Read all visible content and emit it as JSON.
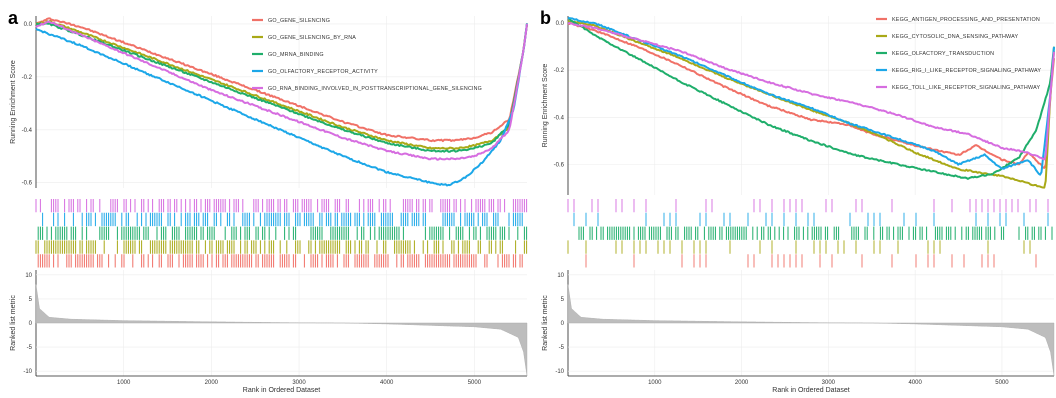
{
  "chart_data": [
    {
      "type": "line",
      "panel_label": "a",
      "x_range": [
        0,
        5600
      ],
      "x_ticks": [
        {
          "value": 1000,
          "label": "1000"
        },
        {
          "value": 2000,
          "label": "2000"
        },
        {
          "value": 3000,
          "label": "3000"
        },
        {
          "value": 4000,
          "label": "4000"
        },
        {
          "value": 5000,
          "label": "5000"
        }
      ],
      "xlabel": "Rank in Ordered Dataset",
      "es_ylabel": "Running Enrichment Score",
      "es_ylim": [
        -0.62,
        0.03
      ],
      "es_ticks": [
        {
          "value": 0.0,
          "label": "0.0"
        },
        {
          "value": -0.2,
          "label": "-0.2"
        },
        {
          "value": -0.4,
          "label": "-0.4"
        },
        {
          "value": -0.6,
          "label": "-0.6"
        }
      ],
      "metric_ylabel": "Ranked list metric",
      "metric_ylim": [
        -11,
        11
      ],
      "metric_ticks": [
        {
          "value": 10,
          "label": "10"
        },
        {
          "value": 5,
          "label": "5"
        },
        {
          "value": 0,
          "label": "0"
        },
        {
          "value": -5,
          "label": "-5"
        },
        {
          "value": -10,
          "label": "-10"
        }
      ],
      "metric_curve": [
        [
          0,
          8
        ],
        [
          40,
          3
        ],
        [
          150,
          1.2
        ],
        [
          400,
          0.8
        ],
        [
          1000,
          0.5
        ],
        [
          2000,
          0.25
        ],
        [
          3000,
          0.05
        ],
        [
          3500,
          0
        ],
        [
          4000,
          -0.2
        ],
        [
          5000,
          -0.8
        ],
        [
          5300,
          -1.3
        ],
        [
          5500,
          -3
        ],
        [
          5560,
          -6
        ],
        [
          5600,
          -11
        ]
      ],
      "legend_position": "top-right",
      "series": [
        {
          "name": "GO_GENE_SILENCING",
          "color": "#F07167",
          "values": [
            [
              0,
              0.0
            ],
            [
              150,
              0.02
            ],
            [
              500,
              -0.01
            ],
            [
              1000,
              -0.07
            ],
            [
              1500,
              -0.13
            ],
            [
              2000,
              -0.19
            ],
            [
              2500,
              -0.25
            ],
            [
              3000,
              -0.31
            ],
            [
              3500,
              -0.37
            ],
            [
              4000,
              -0.42
            ],
            [
              4500,
              -0.44
            ],
            [
              4800,
              -0.44
            ],
            [
              5000,
              -0.43
            ],
            [
              5200,
              -0.41
            ],
            [
              5400,
              -0.36
            ],
            [
              5560,
              -0.1
            ],
            [
              5600,
              0.0
            ]
          ]
        },
        {
          "name": "GO_GENE_SILENCING_BY_RNA",
          "color": "#A9A917",
          "values": [
            [
              0,
              0.0
            ],
            [
              150,
              0.01
            ],
            [
              500,
              -0.03
            ],
            [
              1000,
              -0.09
            ],
            [
              1500,
              -0.15
            ],
            [
              2000,
              -0.21
            ],
            [
              2500,
              -0.27
            ],
            [
              3000,
              -0.33
            ],
            [
              3500,
              -0.39
            ],
            [
              4000,
              -0.44
            ],
            [
              4500,
              -0.47
            ],
            [
              4800,
              -0.47
            ],
            [
              5000,
              -0.46
            ],
            [
              5200,
              -0.44
            ],
            [
              5400,
              -0.39
            ],
            [
              5560,
              -0.1
            ],
            [
              5600,
              0.0
            ]
          ]
        },
        {
          "name": "GO_MRNA_BINDING",
          "color": "#1FAE6B",
          "values": [
            [
              0,
              0.0
            ],
            [
              150,
              0.0
            ],
            [
              500,
              -0.04
            ],
            [
              1000,
              -0.1
            ],
            [
              1500,
              -0.16
            ],
            [
              2000,
              -0.22
            ],
            [
              2500,
              -0.28
            ],
            [
              3000,
              -0.34
            ],
            [
              3500,
              -0.4
            ],
            [
              4000,
              -0.45
            ],
            [
              4500,
              -0.48
            ],
            [
              4800,
              -0.48
            ],
            [
              5000,
              -0.47
            ],
            [
              5200,
              -0.45
            ],
            [
              5400,
              -0.38
            ],
            [
              5560,
              -0.1
            ],
            [
              5600,
              0.0
            ]
          ]
        },
        {
          "name": "GO_OLFACTORY_RECEPTOR_ACTIVITY",
          "color": "#1CA7E8",
          "values": [
            [
              0,
              -0.02
            ],
            [
              500,
              -0.08
            ],
            [
              1000,
              -0.15
            ],
            [
              1500,
              -0.22
            ],
            [
              2000,
              -0.29
            ],
            [
              2500,
              -0.36
            ],
            [
              3000,
              -0.43
            ],
            [
              3500,
              -0.5
            ],
            [
              4000,
              -0.56
            ],
            [
              4500,
              -0.6
            ],
            [
              4700,
              -0.61
            ],
            [
              4900,
              -0.58
            ],
            [
              5100,
              -0.52
            ],
            [
              5300,
              -0.44
            ],
            [
              5450,
              -0.32
            ],
            [
              5560,
              -0.1
            ],
            [
              5600,
              0.0
            ]
          ]
        },
        {
          "name": "GO_RNA_BINDING_INVOLVED_IN_POSTTRANSCRIPTIONAL_GENE_SILENCING",
          "color": "#D66DE0",
          "values": [
            [
              0,
              -0.01
            ],
            [
              150,
              0.01
            ],
            [
              500,
              -0.04
            ],
            [
              1000,
              -0.11
            ],
            [
              1500,
              -0.18
            ],
            [
              2000,
              -0.25
            ],
            [
              2500,
              -0.31
            ],
            [
              3000,
              -0.37
            ],
            [
              3500,
              -0.43
            ],
            [
              4000,
              -0.48
            ],
            [
              4500,
              -0.51
            ],
            [
              4800,
              -0.51
            ],
            [
              5000,
              -0.5
            ],
            [
              5200,
              -0.47
            ],
            [
              5400,
              -0.4
            ],
            [
              5560,
              -0.1
            ],
            [
              5600,
              0.0
            ]
          ]
        }
      ]
    },
    {
      "type": "line",
      "panel_label": "b",
      "x_range": [
        0,
        5600
      ],
      "x_ticks": [
        {
          "value": 1000,
          "label": "1000"
        },
        {
          "value": 2000,
          "label": "2000"
        },
        {
          "value": 3000,
          "label": "3000"
        },
        {
          "value": 4000,
          "label": "4000"
        },
        {
          "value": 5000,
          "label": "5000"
        }
      ],
      "xlabel": "Rank in Ordered Dataset",
      "es_ylabel": "Running Enrichment Score",
      "es_ylim": [
        -0.73,
        0.03
      ],
      "es_ticks": [
        {
          "value": 0.0,
          "label": "0.0"
        },
        {
          "value": -0.2,
          "label": "-0.2"
        },
        {
          "value": -0.4,
          "label": "-0.4"
        },
        {
          "value": -0.6,
          "label": "-0.6"
        }
      ],
      "metric_ylabel": "Ranked list metric",
      "metric_ylim": [
        -11,
        11
      ],
      "metric_ticks": [
        {
          "value": 10,
          "label": "10"
        },
        {
          "value": 5,
          "label": "5"
        },
        {
          "value": 0,
          "label": "0"
        },
        {
          "value": -5,
          "label": "-5"
        },
        {
          "value": -10,
          "label": "-10"
        }
      ],
      "metric_curve": [
        [
          0,
          8
        ],
        [
          40,
          3
        ],
        [
          150,
          1.2
        ],
        [
          400,
          0.8
        ],
        [
          1000,
          0.5
        ],
        [
          2000,
          0.25
        ],
        [
          3000,
          0.05
        ],
        [
          3500,
          0
        ],
        [
          4000,
          -0.2
        ],
        [
          5000,
          -0.8
        ],
        [
          5300,
          -1.3
        ],
        [
          5500,
          -3
        ],
        [
          5560,
          -6
        ],
        [
          5600,
          -11
        ]
      ],
      "legend_position": "top-right",
      "series": [
        {
          "name": "KEGG_ANTIGEN_PROCESSING_AND_PRESENTATION",
          "color": "#F07167",
          "values": [
            [
              0,
              0.0
            ],
            [
              300,
              -0.03
            ],
            [
              800,
              -0.1
            ],
            [
              1300,
              -0.18
            ],
            [
              1800,
              -0.27
            ],
            [
              2300,
              -0.35
            ],
            [
              2800,
              -0.41
            ],
            [
              3200,
              -0.43
            ],
            [
              3500,
              -0.47
            ],
            [
              4000,
              -0.52
            ],
            [
              4500,
              -0.56
            ],
            [
              4700,
              -0.52
            ],
            [
              5000,
              -0.58
            ],
            [
              5200,
              -0.6
            ],
            [
              5300,
              -0.55
            ],
            [
              5500,
              -0.62
            ],
            [
              5560,
              -0.3
            ],
            [
              5600,
              -0.15
            ]
          ]
        },
        {
          "name": "KEGG_CYTOSOLIC_DNA_SENSING_PATHWAY",
          "color": "#A9A917",
          "values": [
            [
              0,
              0.01
            ],
            [
              300,
              -0.01
            ],
            [
              800,
              -0.08
            ],
            [
              1300,
              -0.15
            ],
            [
              1800,
              -0.23
            ],
            [
              2300,
              -0.3
            ],
            [
              2800,
              -0.37
            ],
            [
              3200,
              -0.42
            ],
            [
              3600,
              -0.48
            ],
            [
              4000,
              -0.55
            ],
            [
              4500,
              -0.62
            ],
            [
              5000,
              -0.65
            ],
            [
              5300,
              -0.68
            ],
            [
              5500,
              -0.7
            ],
            [
              5560,
              -0.3
            ],
            [
              5600,
              -0.12
            ]
          ]
        },
        {
          "name": "KEGG_OLFACTORY_TRANSDUCTION",
          "color": "#1FAE6B",
          "values": [
            [
              0,
              0.02
            ],
            [
              300,
              -0.05
            ],
            [
              800,
              -0.15
            ],
            [
              1300,
              -0.25
            ],
            [
              1800,
              -0.34
            ],
            [
              2300,
              -0.43
            ],
            [
              2800,
              -0.5
            ],
            [
              3300,
              -0.56
            ],
            [
              3800,
              -0.6
            ],
            [
              4200,
              -0.63
            ],
            [
              4600,
              -0.66
            ],
            [
              4900,
              -0.64
            ],
            [
              5200,
              -0.57
            ],
            [
              5400,
              -0.45
            ],
            [
              5560,
              -0.25
            ],
            [
              5600,
              -0.1
            ]
          ]
        },
        {
          "name": "KEGG_RIG_I_LIKE_RECEPTOR_SIGNALING_PATHWAY",
          "color": "#1CA7E8",
          "values": [
            [
              0,
              0.02
            ],
            [
              300,
              0.0
            ],
            [
              800,
              -0.07
            ],
            [
              1300,
              -0.14
            ],
            [
              1800,
              -0.22
            ],
            [
              2300,
              -0.3
            ],
            [
              2800,
              -0.36
            ],
            [
              3200,
              -0.42
            ],
            [
              3700,
              -0.48
            ],
            [
              4200,
              -0.54
            ],
            [
              4500,
              -0.6
            ],
            [
              4800,
              -0.56
            ],
            [
              5000,
              -0.62
            ],
            [
              5300,
              -0.58
            ],
            [
              5450,
              -0.65
            ],
            [
              5560,
              -0.3
            ],
            [
              5600,
              -0.1
            ]
          ]
        },
        {
          "name": "KEGG_TOLL_LIKE_RECEPTOR_SIGNALING_PATHWAY",
          "color": "#D66DE0",
          "values": [
            [
              0,
              0.0
            ],
            [
              300,
              -0.02
            ],
            [
              800,
              -0.07
            ],
            [
              1300,
              -0.12
            ],
            [
              1800,
              -0.19
            ],
            [
              2300,
              -0.25
            ],
            [
              2800,
              -0.3
            ],
            [
              3300,
              -0.34
            ],
            [
              3800,
              -0.39
            ],
            [
              4200,
              -0.44
            ],
            [
              4600,
              -0.47
            ],
            [
              5000,
              -0.53
            ],
            [
              5300,
              -0.55
            ],
            [
              5500,
              -0.58
            ],
            [
              5560,
              -0.3
            ],
            [
              5600,
              -0.12
            ]
          ]
        }
      ]
    }
  ]
}
